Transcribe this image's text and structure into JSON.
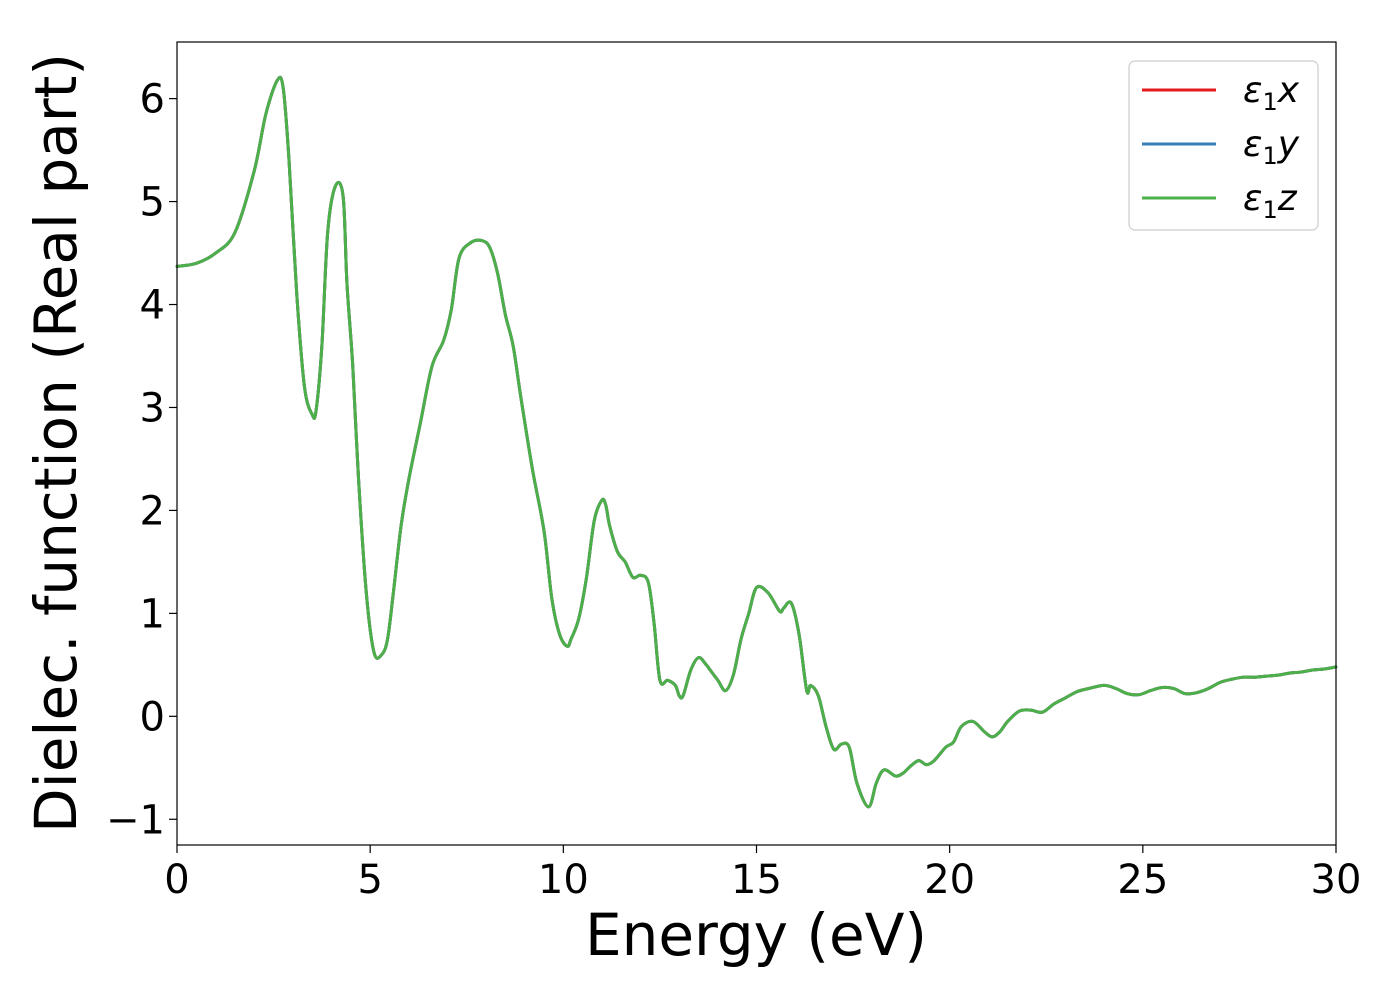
{
  "chart_data": {
    "type": "line",
    "xlabel": "Energy (eV)",
    "ylabel": "Dielec. function (Real part)",
    "xlim": [
      0,
      30
    ],
    "ylim": [
      -1.25,
      6.55
    ],
    "xticks": [
      {
        "value": 0,
        "label": "0"
      },
      {
        "value": 5,
        "label": "5"
      },
      {
        "value": 10,
        "label": "10"
      },
      {
        "value": 15,
        "label": "15"
      },
      {
        "value": 20,
        "label": "20"
      },
      {
        "value": 25,
        "label": "25"
      },
      {
        "value": 30,
        "label": "30"
      }
    ],
    "yticks": [
      {
        "value": -1,
        "label": "−1"
      },
      {
        "value": 0,
        "label": "0"
      },
      {
        "value": 1,
        "label": "1"
      },
      {
        "value": 2,
        "label": "2"
      },
      {
        "value": 3,
        "label": "3"
      },
      {
        "value": 4,
        "label": "4"
      },
      {
        "value": 5,
        "label": "5"
      },
      {
        "value": 6,
        "label": "6"
      }
    ],
    "grid": false,
    "legend_position": "top-right",
    "legend": [
      {
        "symbol": "ε",
        "sub": "1",
        "axis": "x",
        "color": "#e41a1c"
      },
      {
        "symbol": "ε",
        "sub": "1",
        "axis": "y",
        "color": "#377eb8"
      },
      {
        "symbol": "ε",
        "sub": "1",
        "axis": "z",
        "color": "#4daf4a"
      }
    ],
    "x": [
      0,
      0.5,
      1.0,
      1.5,
      2.0,
      2.3,
      2.6,
      2.75,
      2.9,
      3.1,
      3.3,
      3.5,
      3.6,
      3.75,
      3.9,
      4.1,
      4.3,
      4.4,
      4.55,
      4.7,
      4.9,
      5.1,
      5.3,
      5.45,
      5.6,
      5.8,
      6.0,
      6.3,
      6.6,
      6.9,
      7.1,
      7.3,
      7.6,
      7.9,
      8.1,
      8.3,
      8.5,
      8.7,
      8.9,
      9.2,
      9.5,
      9.7,
      9.9,
      10.1,
      10.2,
      10.4,
      10.6,
      10.8,
      11.0,
      11.1,
      11.2,
      11.4,
      11.6,
      11.8,
      12.0,
      12.2,
      12.35,
      12.5,
      12.7,
      12.9,
      13.0,
      13.1,
      13.3,
      13.5,
      13.7,
      13.8,
      14.0,
      14.2,
      14.4,
      14.6,
      14.8,
      15.0,
      15.3,
      15.6,
      15.7,
      15.9,
      16.1,
      16.3,
      16.4,
      16.6,
      16.8,
      17.0,
      17.2,
      17.4,
      17.6,
      17.9,
      18.1,
      18.3,
      18.6,
      18.8,
      19.0,
      19.2,
      19.4,
      19.6,
      19.9,
      20.1,
      20.3,
      20.6,
      20.9,
      21.1,
      21.3,
      21.5,
      21.8,
      22.1,
      22.4,
      22.7,
      23.0,
      23.3,
      23.6,
      24.0,
      24.3,
      24.6,
      24.9,
      25.2,
      25.5,
      25.8,
      26.1,
      26.4,
      26.7,
      27.0,
      27.3,
      27.6,
      27.9,
      28.2,
      28.5,
      28.8,
      29.1,
      29.4,
      29.7,
      30.0
    ],
    "series": [
      {
        "name": "ε1x",
        "color": "#e41a1c",
        "values": [
          4.37,
          4.4,
          4.5,
          4.7,
          5.3,
          5.85,
          6.18,
          6.1,
          5.4,
          4.1,
          3.2,
          2.93,
          2.97,
          3.6,
          4.7,
          5.15,
          5.05,
          4.2,
          3.4,
          2.3,
          1.2,
          0.62,
          0.6,
          0.75,
          1.2,
          1.85,
          2.3,
          2.85,
          3.4,
          3.65,
          3.95,
          4.45,
          4.6,
          4.62,
          4.55,
          4.3,
          3.9,
          3.6,
          3.1,
          2.4,
          1.8,
          1.15,
          0.8,
          0.68,
          0.75,
          0.95,
          1.35,
          1.9,
          2.1,
          2.05,
          1.85,
          1.6,
          1.5,
          1.35,
          1.37,
          1.3,
          0.9,
          0.35,
          0.35,
          0.3,
          0.2,
          0.2,
          0.45,
          0.57,
          0.5,
          0.45,
          0.35,
          0.25,
          0.4,
          0.75,
          1.0,
          1.25,
          1.2,
          1.02,
          1.05,
          1.1,
          0.8,
          0.25,
          0.3,
          0.2,
          -0.1,
          -0.32,
          -0.27,
          -0.3,
          -0.65,
          -0.88,
          -0.65,
          -0.52,
          -0.58,
          -0.55,
          -0.48,
          -0.43,
          -0.47,
          -0.43,
          -0.3,
          -0.25,
          -0.1,
          -0.05,
          -0.15,
          -0.2,
          -0.15,
          -0.05,
          0.05,
          0.06,
          0.04,
          0.12,
          0.18,
          0.24,
          0.27,
          0.3,
          0.27,
          0.22,
          0.21,
          0.25,
          0.28,
          0.27,
          0.22,
          0.23,
          0.27,
          0.33,
          0.36,
          0.38,
          0.38,
          0.39,
          0.4,
          0.42,
          0.43,
          0.45,
          0.46,
          0.48
        ]
      },
      {
        "name": "ε1y",
        "color": "#377eb8",
        "values": [
          4.37,
          4.4,
          4.5,
          4.7,
          5.3,
          5.85,
          6.18,
          6.1,
          5.4,
          4.1,
          3.2,
          2.93,
          2.97,
          3.6,
          4.7,
          5.15,
          5.05,
          4.2,
          3.4,
          2.3,
          1.2,
          0.62,
          0.6,
          0.75,
          1.2,
          1.85,
          2.3,
          2.85,
          3.4,
          3.65,
          3.95,
          4.45,
          4.6,
          4.62,
          4.55,
          4.3,
          3.9,
          3.6,
          3.1,
          2.4,
          1.8,
          1.15,
          0.8,
          0.68,
          0.75,
          0.95,
          1.35,
          1.9,
          2.1,
          2.05,
          1.85,
          1.6,
          1.5,
          1.35,
          1.37,
          1.3,
          0.9,
          0.35,
          0.35,
          0.3,
          0.2,
          0.2,
          0.45,
          0.57,
          0.5,
          0.45,
          0.35,
          0.25,
          0.4,
          0.75,
          1.0,
          1.25,
          1.2,
          1.02,
          1.05,
          1.1,
          0.8,
          0.25,
          0.3,
          0.2,
          -0.1,
          -0.32,
          -0.27,
          -0.3,
          -0.65,
          -0.88,
          -0.65,
          -0.52,
          -0.58,
          -0.55,
          -0.48,
          -0.43,
          -0.47,
          -0.43,
          -0.3,
          -0.25,
          -0.1,
          -0.05,
          -0.15,
          -0.2,
          -0.15,
          -0.05,
          0.05,
          0.06,
          0.04,
          0.12,
          0.18,
          0.24,
          0.27,
          0.3,
          0.27,
          0.22,
          0.21,
          0.25,
          0.28,
          0.27,
          0.22,
          0.23,
          0.27,
          0.33,
          0.36,
          0.38,
          0.38,
          0.39,
          0.4,
          0.42,
          0.43,
          0.45,
          0.46,
          0.48
        ]
      },
      {
        "name": "ε1z",
        "color": "#4daf4a",
        "values": [
          4.37,
          4.4,
          4.5,
          4.7,
          5.3,
          5.85,
          6.18,
          6.1,
          5.4,
          4.1,
          3.2,
          2.93,
          2.97,
          3.6,
          4.7,
          5.15,
          5.05,
          4.2,
          3.4,
          2.3,
          1.2,
          0.62,
          0.6,
          0.75,
          1.2,
          1.85,
          2.3,
          2.85,
          3.4,
          3.65,
          3.95,
          4.45,
          4.6,
          4.62,
          4.55,
          4.3,
          3.9,
          3.6,
          3.1,
          2.4,
          1.8,
          1.15,
          0.8,
          0.68,
          0.75,
          0.95,
          1.35,
          1.9,
          2.1,
          2.05,
          1.85,
          1.6,
          1.5,
          1.35,
          1.37,
          1.3,
          0.9,
          0.35,
          0.35,
          0.3,
          0.2,
          0.2,
          0.45,
          0.57,
          0.5,
          0.45,
          0.35,
          0.25,
          0.4,
          0.75,
          1.0,
          1.25,
          1.2,
          1.02,
          1.05,
          1.1,
          0.8,
          0.25,
          0.3,
          0.2,
          -0.1,
          -0.32,
          -0.27,
          -0.3,
          -0.65,
          -0.88,
          -0.65,
          -0.52,
          -0.58,
          -0.55,
          -0.48,
          -0.43,
          -0.47,
          -0.43,
          -0.3,
          -0.25,
          -0.1,
          -0.05,
          -0.15,
          -0.2,
          -0.15,
          -0.05,
          0.05,
          0.06,
          0.04,
          0.12,
          0.18,
          0.24,
          0.27,
          0.3,
          0.27,
          0.22,
          0.21,
          0.25,
          0.28,
          0.27,
          0.22,
          0.23,
          0.27,
          0.33,
          0.36,
          0.38,
          0.38,
          0.39,
          0.4,
          0.42,
          0.43,
          0.45,
          0.46,
          0.48
        ]
      }
    ]
  }
}
